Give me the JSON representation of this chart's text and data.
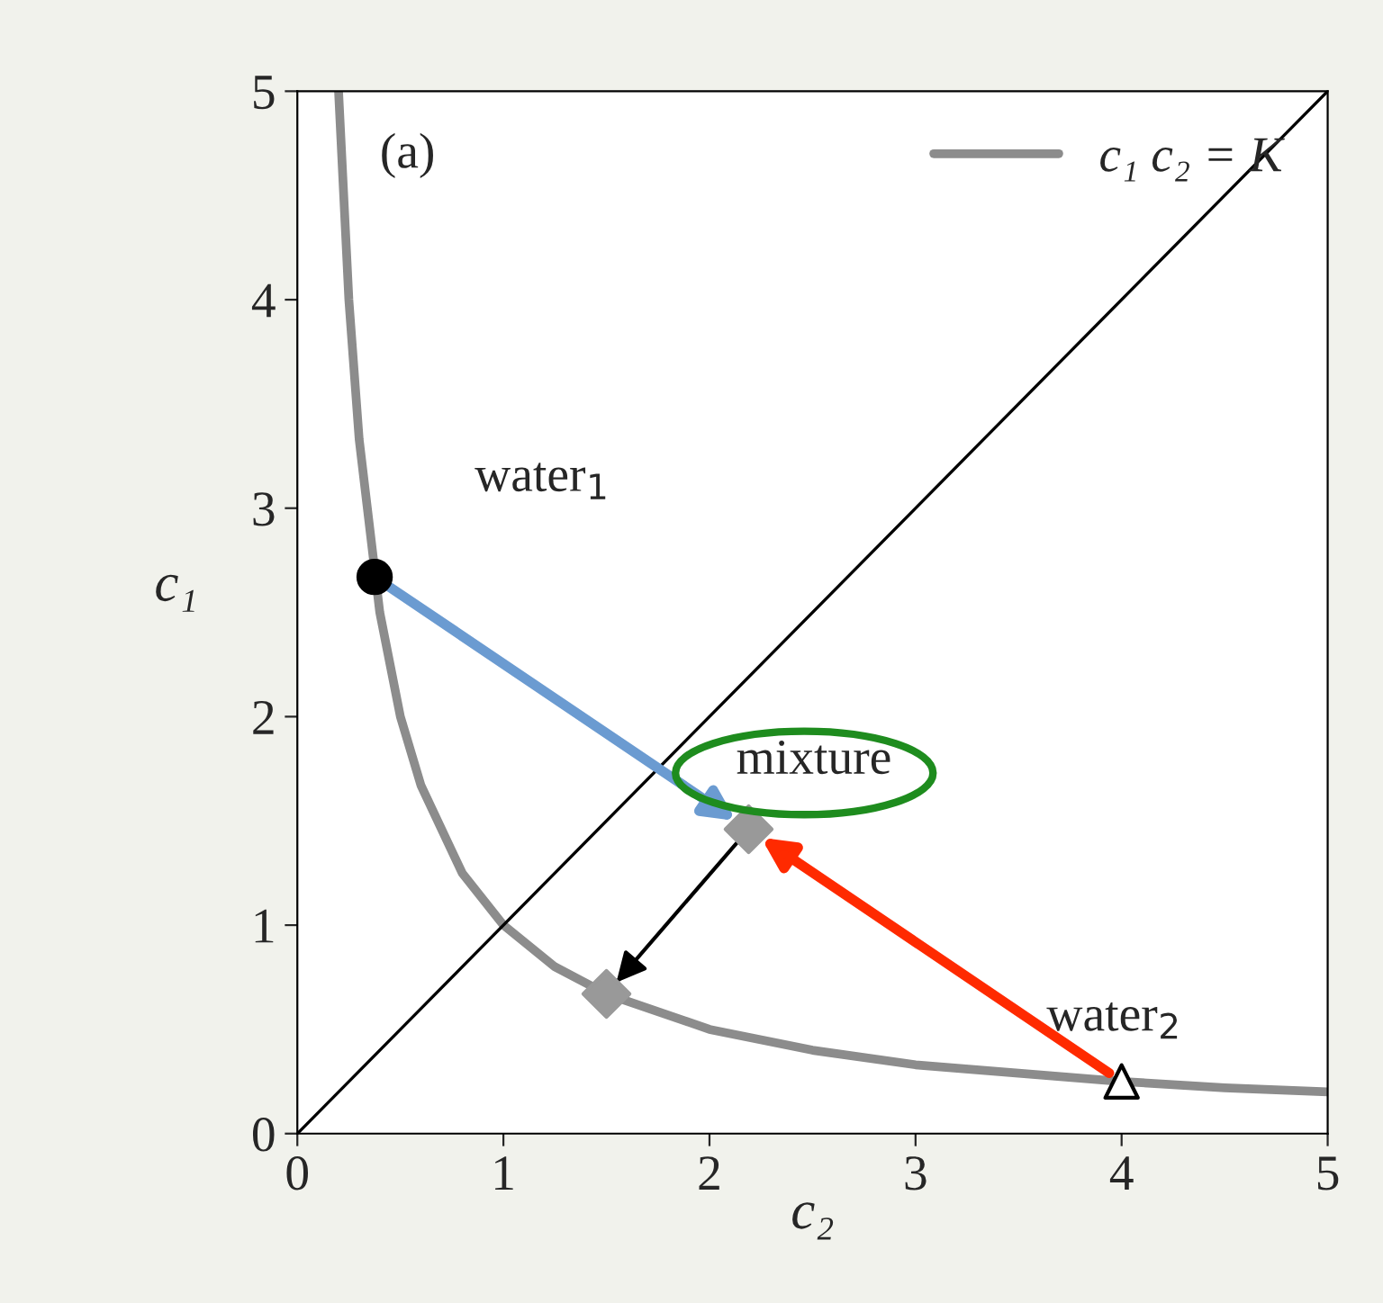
{
  "chart_data": {
    "type": "line",
    "xlabel": "c₂",
    "ylabel": "c₁",
    "xlim": [
      0,
      5
    ],
    "ylim": [
      0,
      5
    ],
    "xticks": [
      0,
      1,
      2,
      3,
      4,
      5
    ],
    "yticks": [
      0,
      1,
      2,
      3,
      4,
      5
    ],
    "grid": false,
    "legend": "top right",
    "series": [
      {
        "name": "c₁ c₂ = K",
        "color": "#8c8c8c",
        "x": [
          0.2,
          0.25,
          0.3,
          0.4,
          0.5,
          0.6,
          0.8,
          1,
          1.25,
          1.5,
          2,
          2.5,
          3,
          3.5,
          4,
          4.5,
          5
        ],
        "values": [
          5,
          4,
          3.33,
          2.5,
          2,
          1.67,
          1.25,
          1,
          0.8,
          0.67,
          0.5,
          0.4,
          0.33,
          0.29,
          0.25,
          0.22,
          0.2
        ]
      },
      {
        "color": "#000000",
        "x": [
          0,
          5
        ],
        "values": [
          0,
          5
        ]
      },
      {
        "type": "scatter",
        "marker": "circle",
        "color": "#000000",
        "x": [
          0.375
        ],
        "values": [
          2.67
        ]
      },
      {
        "type": "scatter",
        "marker": "triangle",
        "color": "#ffffff",
        "x": [
          4
        ],
        "values": [
          0.25
        ]
      },
      {
        "type": "scatter",
        "marker": "diamond",
        "color": "#999999",
        "x": [
          2.19,
          1.5
        ],
        "values": [
          1.46,
          0.67
        ]
      }
    ],
    "annotations": [
      "(a)",
      {
        "text": "water$_{1}$",
        "x": 0.375,
        "y": 2.67
      },
      {
        "text": "water$_{2}$",
        "x": 4,
        "y": 0.25
      },
      {
        "text": "mixture",
        "x": 2.19,
        "y": 1.46
      }
    ]
  }
}
